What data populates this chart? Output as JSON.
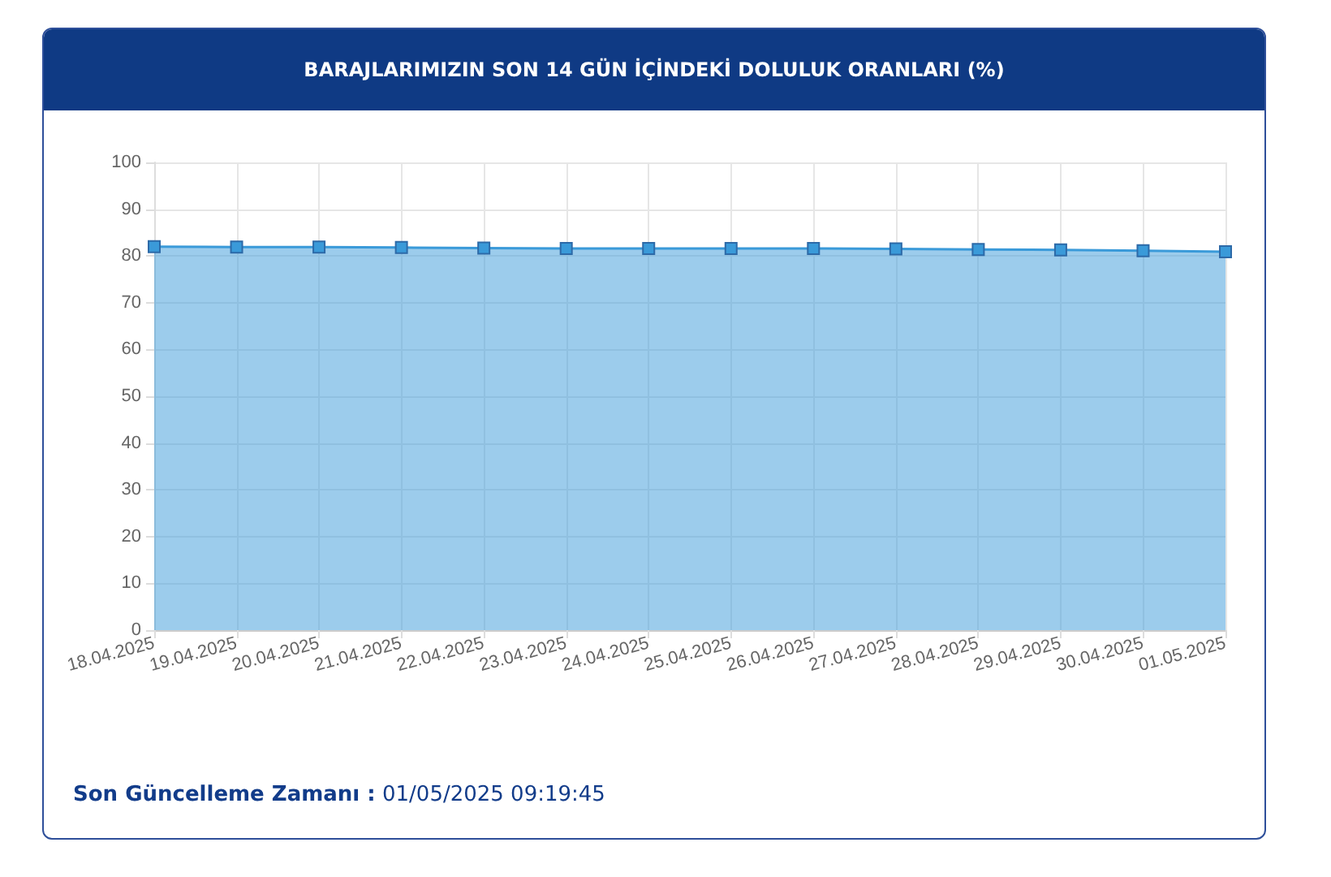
{
  "chart_data": {
    "type": "area",
    "title": "BARAJLARIMIZIN SON 14 GÜN İÇİNDEKİ DOLULUK ORANLARI (%)",
    "categories": [
      "18.04.2025",
      "19.04.2025",
      "20.04.2025",
      "21.04.2025",
      "22.04.2025",
      "23.04.2025",
      "24.04.2025",
      "25.04.2025",
      "26.04.2025",
      "27.04.2025",
      "28.04.2025",
      "29.04.2025",
      "30.04.2025",
      "01.05.2025"
    ],
    "series": [
      {
        "color": "#3a9ad9",
        "values": [
          82.0,
          81.9,
          81.9,
          81.8,
          81.7,
          81.6,
          81.6,
          81.6,
          81.6,
          81.5,
          81.4,
          81.3,
          81.1,
          80.9
        ]
      }
    ],
    "ylim": [
      0,
      100
    ],
    "yticks": [
      0,
      10,
      20,
      30,
      40,
      50,
      60,
      70,
      80,
      90,
      100
    ],
    "grid": true,
    "marker": "square",
    "annotations": [
      "Son Güncelleme Zamanı :",
      "01/05/2025 09:19:45"
    ]
  }
}
